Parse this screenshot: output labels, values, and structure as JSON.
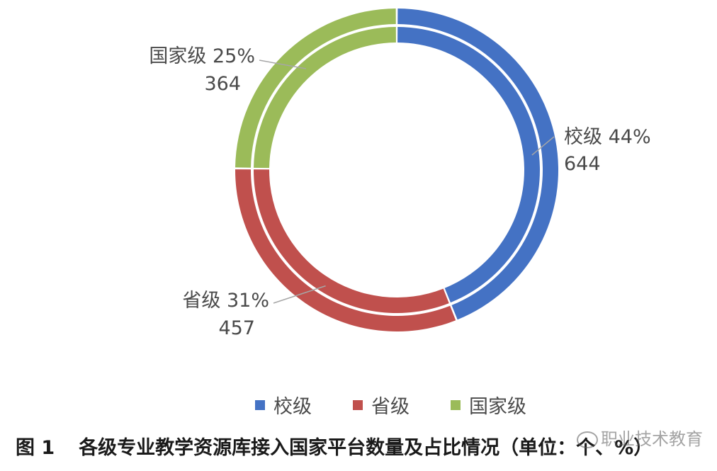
{
  "chart_data": {
    "type": "pie",
    "style": "double-ring-donut",
    "slices": [
      {
        "name": "校级",
        "value": 644,
        "percent": "44%",
        "color": "#4472C4"
      },
      {
        "name": "省级",
        "value": 457,
        "percent": "31%",
        "color": "#C0504D"
      },
      {
        "name": "国家级",
        "value": 364,
        "percent": "25%",
        "color": "#9BBB59"
      }
    ],
    "legend_position": "bottom",
    "title": "各级专业教学资源库接入国家平台数量及占比情况（单位：个、%）"
  },
  "caption": {
    "figure_number": "图 1",
    "text": "各级专业教学资源库接入国家平台数量及占比情况（单位：个、%）"
  },
  "watermark": {
    "text": "职业技术教育",
    "icon": "wechat-icon"
  }
}
